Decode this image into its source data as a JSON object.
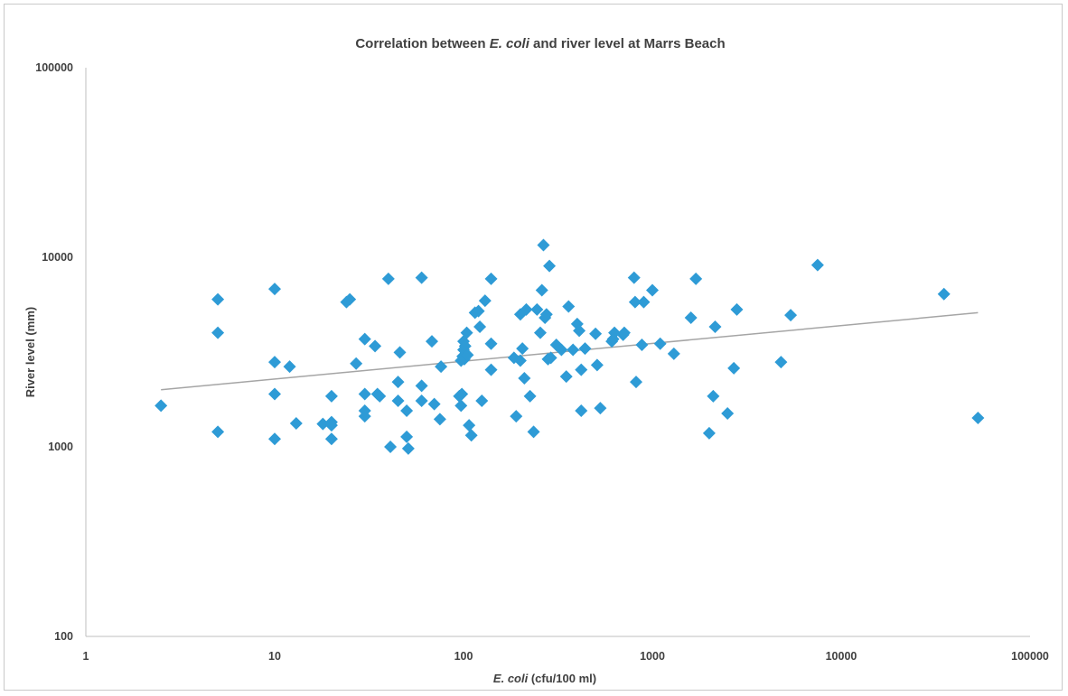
{
  "chart_data": {
    "type": "scatter",
    "title_prefix": "Correlation between ",
    "title_italic": "E. coli",
    "title_suffix": " and river level at Marrs Beach",
    "xlabel_italic": "E. coli",
    "xlabel_suffix": " (cfu/100 ml)",
    "ylabel": "River level (mm)",
    "x_scale": "log",
    "y_scale": "log",
    "xlim": [
      1,
      100000
    ],
    "ylim": [
      100,
      100000
    ],
    "x_ticks": [
      1,
      10,
      100,
      1000,
      10000,
      100000
    ],
    "x_tick_labels": [
      "1",
      "10",
      "100",
      "1000",
      "10000",
      "100000"
    ],
    "y_ticks": [
      100,
      1000,
      10000,
      100000
    ],
    "y_tick_labels": [
      "100",
      "1000",
      "10000",
      "100000"
    ],
    "grid": false,
    "legend": "none",
    "marker_color": "#2E9BD6",
    "trendline_color": "#A5A5A5",
    "trendline": {
      "type": "power",
      "x": [
        2.5,
        53000
      ],
      "y": [
        2000,
        5100
      ]
    },
    "series": [
      {
        "x": [
          2.5,
          5,
          5,
          5,
          10,
          10,
          10,
          10,
          12,
          13,
          18,
          20,
          20,
          20,
          20,
          24,
          25,
          27,
          30,
          30,
          30,
          30,
          34,
          35,
          36,
          40,
          41,
          45,
          45,
          46,
          50,
          50,
          51,
          60,
          60,
          60,
          68,
          70,
          75,
          76,
          95,
          97,
          97,
          98,
          99,
          100,
          100,
          101,
          102,
          104,
          105,
          107,
          110,
          115,
          120,
          122,
          125,
          130,
          140,
          140,
          140,
          185,
          190,
          200,
          200,
          205,
          210,
          215,
          225,
          235,
          245,
          255,
          260,
          265,
          270,
          275,
          280,
          285,
          290,
          310,
          330,
          350,
          360,
          380,
          400,
          410,
          420,
          420,
          440,
          500,
          510,
          530,
          610,
          620,
          630,
          700,
          710,
          800,
          810,
          820,
          880,
          900,
          1000,
          1100,
          1300,
          1600,
          1700,
          2000,
          2100,
          2150,
          2500,
          2700,
          2800,
          4800,
          5400,
          7500,
          35000,
          53000
        ],
        "y": [
          1650,
          1200,
          6000,
          4000,
          6800,
          2800,
          1900,
          1100,
          2650,
          1330,
          1320,
          1850,
          1350,
          1300,
          1100,
          5800,
          6000,
          2750,
          3700,
          1900,
          1550,
          1450,
          3400,
          1900,
          1850,
          7700,
          1000,
          2200,
          1750,
          3150,
          1550,
          1130,
          980,
          1750,
          2100,
          7800,
          3600,
          1680,
          1400,
          2650,
          1850,
          1650,
          2850,
          1900,
          3000,
          3250,
          3600,
          2900,
          3400,
          4000,
          3050,
          1300,
          1150,
          5100,
          5200,
          4300,
          1750,
          5900,
          7700,
          3500,
          2550,
          2950,
          1450,
          5000,
          2850,
          3300,
          2300,
          5300,
          1850,
          1200,
          5300,
          4000,
          6700,
          11600,
          4800,
          5000,
          2900,
          9000,
          2950,
          3450,
          3250,
          2350,
          5500,
          3250,
          4450,
          4100,
          2550,
          1550,
          3300,
          3950,
          2700,
          1600,
          3600,
          3700,
          4000,
          3900,
          4000,
          7800,
          5800,
          2200,
          3450,
          5800,
          6700,
          3500,
          3100,
          4800,
          7700,
          1180,
          1850,
          4300,
          1500,
          2600,
          5300,
          2800,
          4950,
          9100,
          6400,
          1420
        ]
      }
    ]
  }
}
